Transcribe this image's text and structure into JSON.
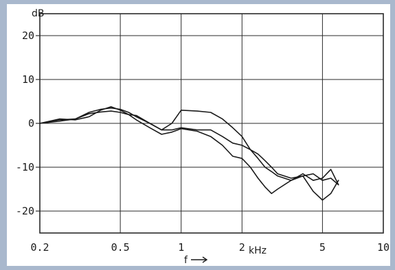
{
  "chart_data": {
    "type": "line",
    "title": "",
    "ylabel": "dB",
    "xlabel": "f",
    "x_unit_label": "kHz",
    "x_scale": "log",
    "xlim": [
      0.2,
      10
    ],
    "ylim": [
      -25,
      25
    ],
    "grid": true,
    "x_ticks": [
      0.2,
      0.5,
      1,
      2,
      5,
      10
    ],
    "x_tick_labels": [
      "0.2",
      "0.5",
      "1",
      "2",
      "5",
      "10"
    ],
    "y_ticks": [
      20,
      10,
      0,
      -10,
      -20
    ],
    "y_tick_labels": [
      "20",
      "10",
      "0",
      "-10",
      "-20"
    ],
    "line_color": "#1a1a1a",
    "grid_color": "#2a2a2a",
    "series": [
      {
        "x": [
          0.2,
          0.25,
          0.3,
          0.35,
          0.4,
          0.45,
          0.5,
          0.55,
          0.6,
          0.7,
          0.8,
          0.9,
          1.0,
          1.2,
          1.4,
          1.6,
          1.8,
          2.0,
          2.2,
          2.4,
          2.6,
          2.8,
          3.0,
          3.5,
          4.0,
          4.5,
          5.0,
          5.5,
          6.0
        ],
        "y": [
          0,
          0.8,
          1.0,
          2.5,
          3.2,
          3.5,
          3.2,
          2.5,
          1.5,
          0,
          -1.5,
          -1.5,
          -1.0,
          -1.5,
          -1.5,
          -3.0,
          -4.5,
          -5.0,
          -6.0,
          -7.0,
          -8.5,
          -10.0,
          -11.5,
          -12.5,
          -12.0,
          -11.5,
          -13.0,
          -12.5,
          -14.0
        ]
      },
      {
        "x": [
          0.2,
          0.25,
          0.3,
          0.35,
          0.4,
          0.45,
          0.5,
          0.55,
          0.6,
          0.7,
          0.8,
          0.9,
          1.0,
          1.2,
          1.4,
          1.6,
          1.8,
          2.0,
          2.2,
          2.4,
          2.6,
          2.8,
          3.0,
          3.5,
          4.0,
          4.5,
          5.0,
          5.5,
          6.0
        ],
        "y": [
          0,
          1.0,
          0.8,
          1.5,
          3.0,
          3.8,
          3.0,
          2.0,
          0.8,
          -1.0,
          -2.5,
          -2.0,
          -1.2,
          -1.8,
          -3.0,
          -5.0,
          -7.5,
          -8.0,
          -10.0,
          -12.5,
          -14.5,
          -16.0,
          -15.0,
          -13.0,
          -12.0,
          -15.5,
          -17.5,
          -16.0,
          -13.0
        ]
      },
      {
        "x": [
          0.2,
          0.25,
          0.3,
          0.35,
          0.4,
          0.45,
          0.5,
          0.55,
          0.6,
          0.7,
          0.8,
          0.9,
          1.0,
          1.2,
          1.4,
          1.6,
          1.8,
          2.0,
          2.2,
          2.4,
          2.6,
          2.8,
          3.0,
          3.5,
          4.0,
          4.5,
          5.0,
          5.5,
          6.0
        ],
        "y": [
          0,
          0.5,
          1.0,
          2.2,
          2.6,
          2.8,
          2.5,
          2.0,
          1.8,
          0,
          -1.5,
          0,
          3.0,
          2.8,
          2.5,
          1.0,
          -1.0,
          -3.0,
          -6.0,
          -8.0,
          -10.0,
          -11.0,
          -12.0,
          -13.0,
          -11.5,
          -13.0,
          -12.5,
          -10.5,
          -14.0
        ]
      }
    ]
  }
}
